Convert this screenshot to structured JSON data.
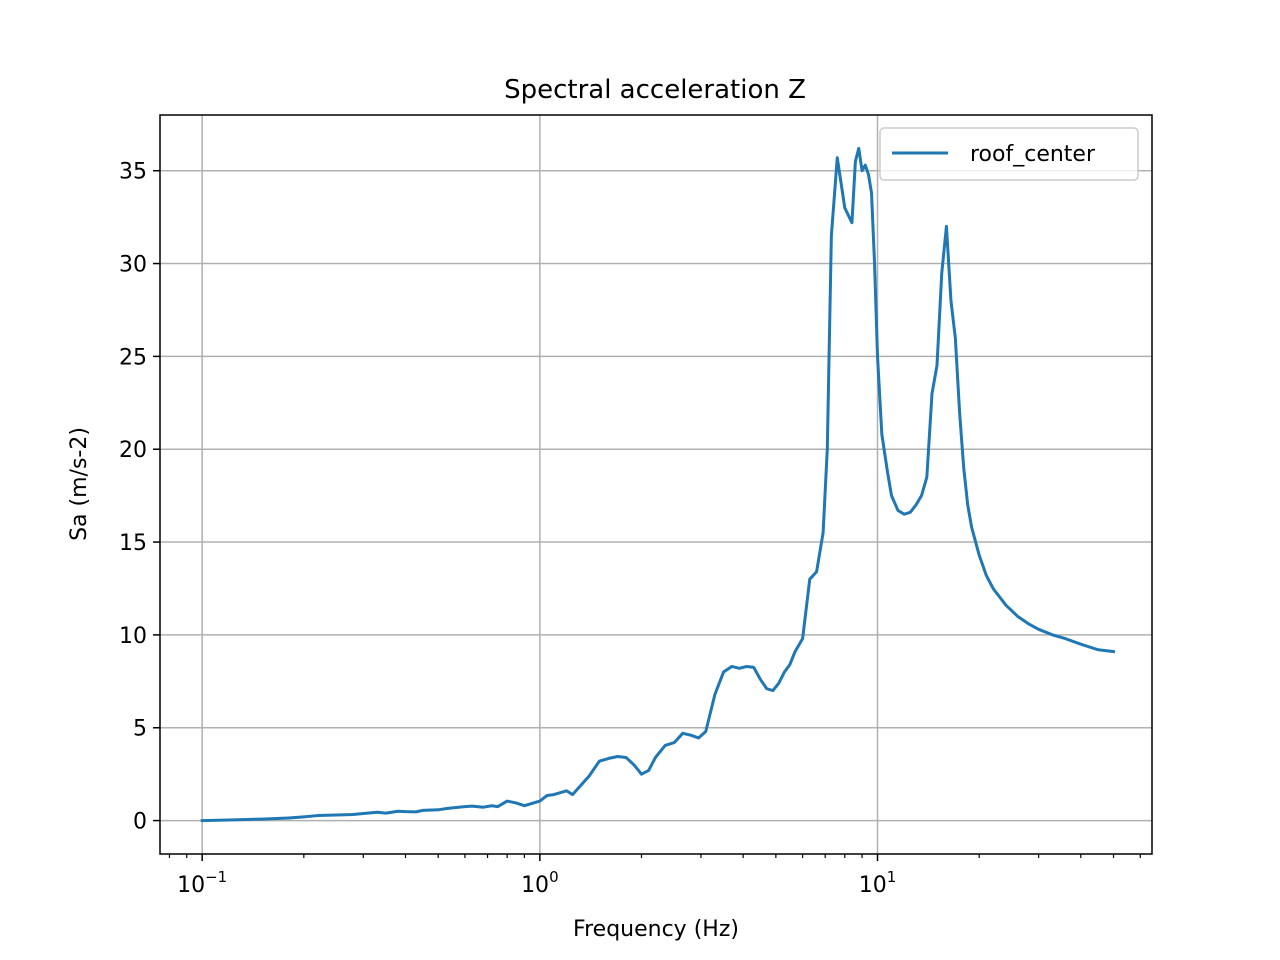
{
  "chart_data": {
    "type": "line",
    "title": "Spectral acceleration Z",
    "xlabel": "Frequency (Hz)",
    "ylabel": "Sa (m/s-2)",
    "x_scale": "log",
    "xlim": [
      0.075,
      65
    ],
    "ylim": [
      -1.8,
      38
    ],
    "x_ticks": [
      {
        "value": 0.1,
        "base": "10",
        "exp": "−1"
      },
      {
        "value": 1,
        "base": "10",
        "exp": "0"
      },
      {
        "value": 10,
        "base": "10",
        "exp": "1"
      }
    ],
    "y_ticks": [
      0,
      5,
      10,
      15,
      20,
      25,
      30,
      35
    ],
    "y_tick_labels": [
      "0",
      "5",
      "10",
      "15",
      "20",
      "25",
      "30",
      "35"
    ],
    "grid": true,
    "legend_position": "top-right",
    "colors": {
      "series": "#1f77b4",
      "grid": "#b0b0b0",
      "axes": "#000000"
    },
    "series": [
      {
        "name": "roof_center",
        "x": [
          0.1,
          0.12,
          0.15,
          0.18,
          0.2,
          0.22,
          0.25,
          0.28,
          0.3,
          0.33,
          0.35,
          0.38,
          0.4,
          0.43,
          0.45,
          0.5,
          0.53,
          0.56,
          0.6,
          0.63,
          0.68,
          0.72,
          0.75,
          0.8,
          0.85,
          0.9,
          1.0,
          1.05,
          1.1,
          1.2,
          1.25,
          1.3,
          1.4,
          1.5,
          1.6,
          1.7,
          1.8,
          1.9,
          2.0,
          2.1,
          2.2,
          2.35,
          2.5,
          2.65,
          2.8,
          2.95,
          3.1,
          3.3,
          3.5,
          3.7,
          3.9,
          4.1,
          4.3,
          4.5,
          4.7,
          4.9,
          5.1,
          5.3,
          5.5,
          5.7,
          6.0,
          6.3,
          6.6,
          6.9,
          7.1,
          7.3,
          7.6,
          8.0,
          8.4,
          8.6,
          8.8,
          9.0,
          9.2,
          9.4,
          9.6,
          9.8,
          10.0,
          10.3,
          10.7,
          11.0,
          11.5,
          12.0,
          12.5,
          13.0,
          13.5,
          14.0,
          14.5,
          15.0,
          15.5,
          16.0,
          16.5,
          17.0,
          17.5,
          18.0,
          18.5,
          19.0,
          20.0,
          21.0,
          22.0,
          24.0,
          26.0,
          28.0,
          30.0,
          33.0,
          36.0,
          40.0,
          45.0,
          50.0
        ],
        "y": [
          0.0,
          0.03,
          0.08,
          0.14,
          0.2,
          0.27,
          0.3,
          0.33,
          0.38,
          0.45,
          0.4,
          0.5,
          0.48,
          0.47,
          0.55,
          0.58,
          0.65,
          0.7,
          0.75,
          0.78,
          0.72,
          0.8,
          0.75,
          1.05,
          0.95,
          0.8,
          1.05,
          1.35,
          1.4,
          1.6,
          1.4,
          1.75,
          2.4,
          3.2,
          3.35,
          3.45,
          3.4,
          3.0,
          2.5,
          2.7,
          3.4,
          4.05,
          4.2,
          4.7,
          4.6,
          4.45,
          4.8,
          6.8,
          8.0,
          8.3,
          8.2,
          8.3,
          8.25,
          7.6,
          7.1,
          7.0,
          7.4,
          8.0,
          8.4,
          9.1,
          9.8,
          13.0,
          13.4,
          15.5,
          20.0,
          31.5,
          35.7,
          33.0,
          32.2,
          35.5,
          36.2,
          35.0,
          35.3,
          34.8,
          33.8,
          30.0,
          25.0,
          20.8,
          18.8,
          17.5,
          16.7,
          16.5,
          16.6,
          17.0,
          17.5,
          18.5,
          23.0,
          24.5,
          29.5,
          32.0,
          28.0,
          26.0,
          22.0,
          19.0,
          17.0,
          15.8,
          14.3,
          13.2,
          12.5,
          11.6,
          11.0,
          10.6,
          10.3,
          10.0,
          9.8,
          9.5,
          9.2,
          9.1
        ]
      }
    ]
  }
}
